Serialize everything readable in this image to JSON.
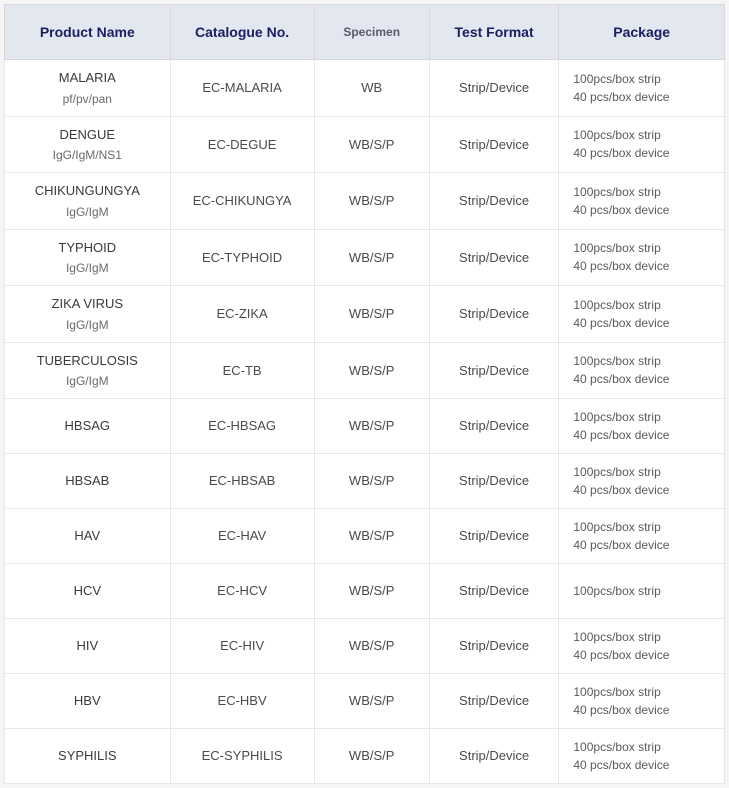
{
  "table": {
    "columns": [
      "Product Name",
      "Catalogue No.",
      "Specimen",
      "Test Format",
      "Package"
    ],
    "column_widths": [
      "23%",
      "20%",
      "16%",
      "18%",
      "23%"
    ],
    "header_bg": "#e2e7f0",
    "header_text_color": "#1a2060",
    "border_color": "#e8e8e8",
    "rows": [
      {
        "product_line1": "MALARIA",
        "product_line2": "pf/pv/pan",
        "catalogue": "EC-MALARIA",
        "specimen": "WB",
        "test_format": "Strip/Device",
        "package_line1": "100pcs/box strip",
        "package_line2": "40 pcs/box device"
      },
      {
        "product_line1": "DENGUE",
        "product_line2": "IgG/IgM/NS1",
        "catalogue": "EC-DEGUE",
        "specimen": "WB/S/P",
        "test_format": "Strip/Device",
        "package_line1": "100pcs/box strip",
        "package_line2": "40 pcs/box device"
      },
      {
        "product_line1": "CHIKUNGUNGYA",
        "product_line2": "IgG/IgM",
        "catalogue": "EC-CHIKUNGYA",
        "specimen": "WB/S/P",
        "test_format": "Strip/Device",
        "package_line1": "100pcs/box strip",
        "package_line2": "40 pcs/box device"
      },
      {
        "product_line1": "TYPHOID",
        "product_line2": "IgG/IgM",
        "catalogue": "EC-TYPHOID",
        "specimen": "WB/S/P",
        "test_format": "Strip/Device",
        "package_line1": "100pcs/box strip",
        "package_line2": "40 pcs/box device"
      },
      {
        "product_line1": "ZIKA VIRUS",
        "product_line2": "IgG/IgM",
        "catalogue": "EC-ZIKA",
        "specimen": "WB/S/P",
        "test_format": "Strip/Device",
        "package_line1": "100pcs/box strip",
        "package_line2": "40 pcs/box device"
      },
      {
        "product_line1": "TUBERCULOSIS",
        "product_line2": "IgG/IgM",
        "catalogue": "EC-TB",
        "specimen": "WB/S/P",
        "test_format": "Strip/Device",
        "package_line1": "100pcs/box strip",
        "package_line2": "40 pcs/box device"
      },
      {
        "product_line1": "HBSAG",
        "product_line2": "",
        "catalogue": "EC-HBSAG",
        "specimen": "WB/S/P",
        "test_format": "Strip/Device",
        "package_line1": "100pcs/box strip",
        "package_line2": "40 pcs/box device"
      },
      {
        "product_line1": "HBSAB",
        "product_line2": "",
        "catalogue": "EC-HBSAB",
        "specimen": "WB/S/P",
        "test_format": "Strip/Device",
        "package_line1": "100pcs/box strip",
        "package_line2": "40 pcs/box device"
      },
      {
        "product_line1": "HAV",
        "product_line2": "",
        "catalogue": "EC-HAV",
        "specimen": "WB/S/P",
        "test_format": "Strip/Device",
        "package_line1": "100pcs/box strip",
        "package_line2": "40 pcs/box device"
      },
      {
        "product_line1": "HCV",
        "product_line2": "",
        "catalogue": "EC-HCV",
        "specimen": "WB/S/P",
        "test_format": "Strip/Device",
        "package_line1": "100pcs/box strip",
        "package_line2": ""
      },
      {
        "product_line1": "HIV",
        "product_line2": "",
        "catalogue": "EC-HIV",
        "specimen": "WB/S/P",
        "test_format": "Strip/Device",
        "package_line1": "100pcs/box strip",
        "package_line2": "40 pcs/box device"
      },
      {
        "product_line1": "HBV",
        "product_line2": "",
        "catalogue": "EC-HBV",
        "specimen": "WB/S/P",
        "test_format": "Strip/Device",
        "package_line1": "100pcs/box strip",
        "package_line2": "40 pcs/box device"
      },
      {
        "product_line1": "SYPHILIS",
        "product_line2": "",
        "catalogue": "EC-SYPHILIS",
        "specimen": "WB/S/P",
        "test_format": "Strip/Device",
        "package_line1": "100pcs/box strip",
        "package_line2": "40 pcs/box device"
      }
    ]
  }
}
